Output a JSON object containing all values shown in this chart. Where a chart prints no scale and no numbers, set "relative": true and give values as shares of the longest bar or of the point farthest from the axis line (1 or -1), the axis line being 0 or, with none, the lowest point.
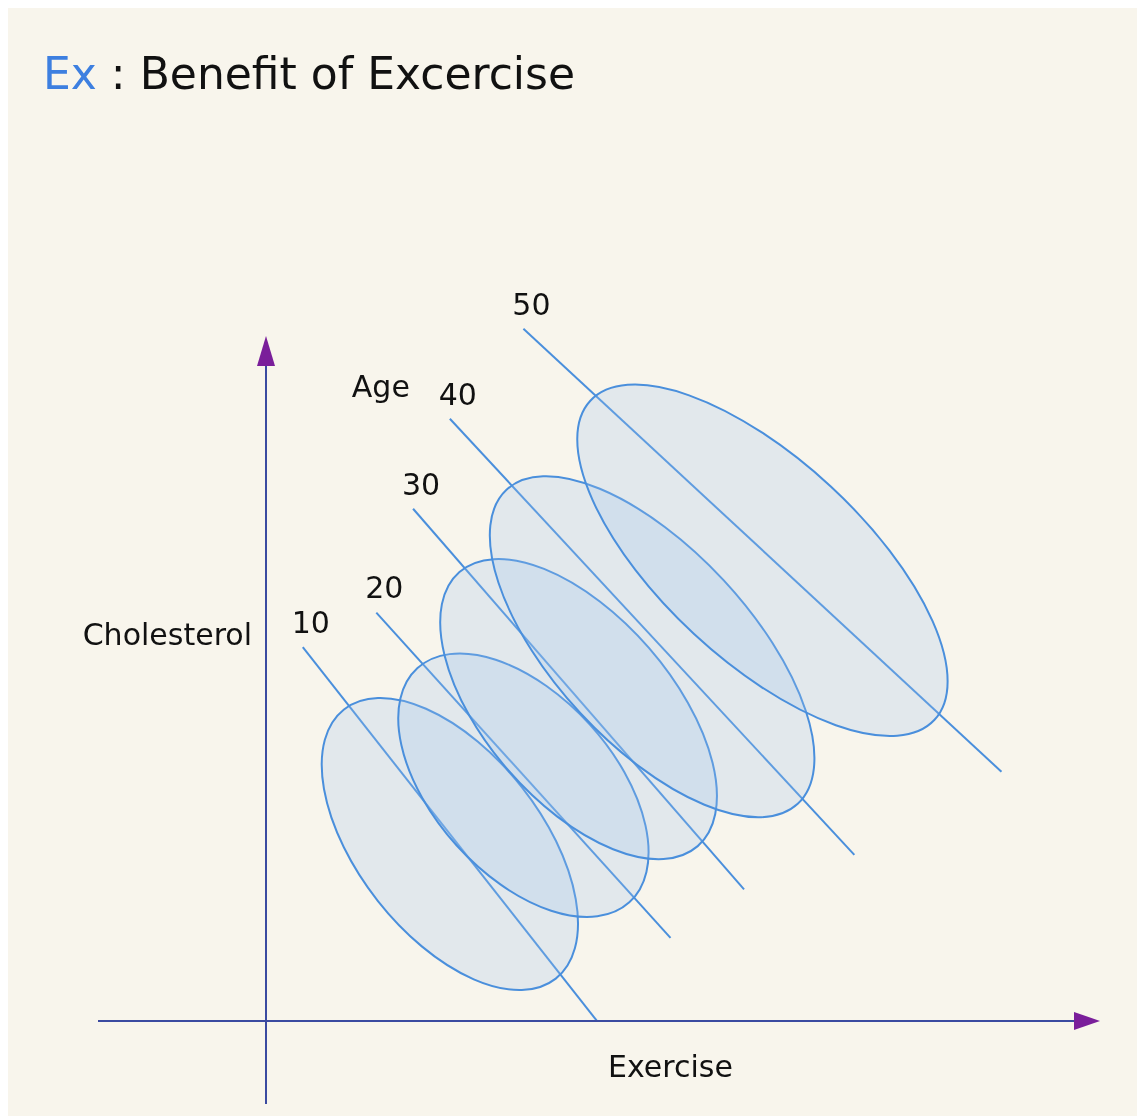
{
  "chart_data": {
    "type": "line",
    "title": "Ex : Benefit of Excercise",
    "xlabel": "Exercise",
    "ylabel": "Cholesterol",
    "legend_title": "Age",
    "relative": true,
    "marker": "none",
    "line_style": "solid",
    "categories": [
      null,
      null,
      null,
      null,
      null,
      null,
      null,
      null,
      null,
      null,
      null,
      null,
      null,
      null,
      null,
      null,
      null,
      null,
      null,
      null,
      null,
      null,
      null
    ],
    "series": [
      {
        "name": "10",
        "color": "#4a8fdc",
        "values": [
          null,
          0.54,
          null,
          null,
          null,
          null,
          null,
          null,
          null,
          0,
          null,
          null,
          null,
          null,
          null,
          null,
          null,
          null,
          null,
          null,
          null,
          null,
          null
        ]
      },
      {
        "name": "20",
        "color": "#4a8fdc",
        "values": [
          null,
          null,
          null,
          0.59,
          null,
          null,
          null,
          null,
          null,
          null,
          null,
          0.12,
          null,
          null,
          null,
          null,
          null,
          null,
          null,
          null,
          null,
          null,
          null
        ]
      },
      {
        "name": "30",
        "color": "#4a8fdc",
        "values": [
          null,
          null,
          null,
          null,
          0.74,
          null,
          null,
          null,
          null,
          null,
          null,
          null,
          null,
          0.19,
          null,
          null,
          null,
          null,
          null,
          null,
          null,
          null,
          null
        ]
      },
      {
        "name": "40",
        "color": "#4a8fdc",
        "values": [
          null,
          null,
          null,
          null,
          null,
          0.87,
          null,
          null,
          null,
          null,
          null,
          null,
          null,
          null,
          null,
          null,
          0.24,
          null,
          null,
          null,
          null,
          null,
          null
        ]
      },
      {
        "name": "50",
        "color": "#4a8fdc",
        "values": [
          null,
          null,
          null,
          null,
          null,
          null,
          null,
          1,
          null,
          null,
          null,
          null,
          null,
          null,
          null,
          null,
          null,
          null,
          null,
          null,
          0.36,
          null,
          null
        ]
      }
    ]
  }
}
